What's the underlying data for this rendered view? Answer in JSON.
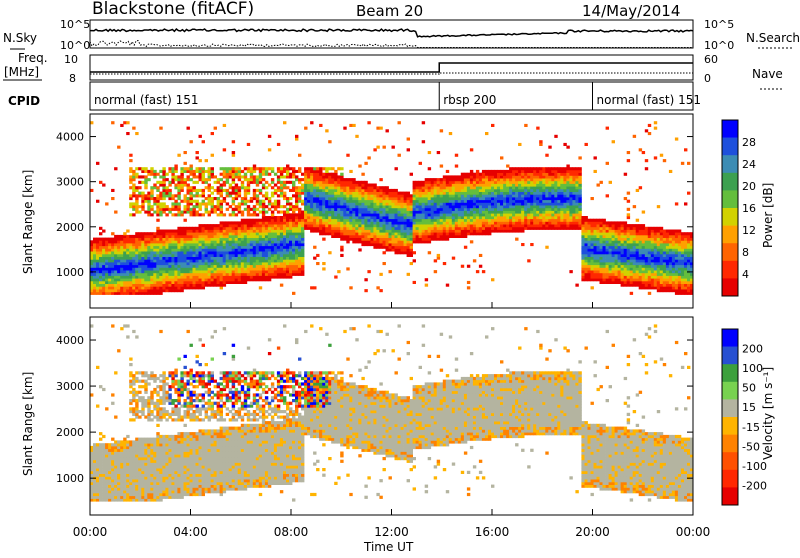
{
  "header": {
    "title": "Blackstone (fitACF)",
    "beam": "Beam 20",
    "date": "14/May/2014"
  },
  "left_labels": {
    "nsky": "N.Sky",
    "freq": "Freq.",
    "freq_unit": "[MHz]",
    "cpid": "CPID"
  },
  "right_labels": {
    "nsearch": "N.Search",
    "nave": "Nave"
  },
  "nsky_ticks": [
    "10^5",
    "10^0"
  ],
  "nsearch_ticks": [
    "10^5",
    "10^0"
  ],
  "freq_ticks": [
    "10",
    "8"
  ],
  "nave_ticks": [
    "60",
    "0"
  ],
  "cpid_modes": [
    {
      "label": "normal (fast) 151",
      "start_h": 0,
      "end_h": 13.9
    },
    {
      "label": "rbsp 200",
      "start_h": 13.9,
      "end_h": 20
    },
    {
      "label": "normal (fast) 151",
      "start_h": 20,
      "end_h": 24
    }
  ],
  "colors": {
    "power": [
      "#0000ff",
      "#1e50dc",
      "#3c8cb4",
      "#3ca050",
      "#64be3c",
      "#d2d200",
      "#ffa000",
      "#ff6400",
      "#ff2800",
      "#e60000"
    ],
    "velocity": [
      "#0000ff",
      "#2850d2",
      "#3ca03c",
      "#78d250",
      "#b4b4a0",
      "#ffb400",
      "#ff8200",
      "#ff5000",
      "#ff2800",
      "#e60000"
    ]
  },
  "chart_data": [
    {
      "type": "heatmap",
      "name": "power",
      "ylabel": "Slant Range [km]",
      "ylim": [
        200,
        4500
      ],
      "yticks": [
        "1000",
        "2000",
        "3000",
        "4000"
      ],
      "colorbar_label": "Power [dB]",
      "colorbar_ticks": [
        "28",
        "24",
        "20",
        "16",
        "12",
        "8",
        "4"
      ],
      "colorbar_range": [
        0,
        30
      ]
    },
    {
      "type": "heatmap",
      "name": "velocity",
      "ylabel": "Slant Range [km]",
      "ylim": [
        200,
        4500
      ],
      "yticks": [
        "1000",
        "2000",
        "3000",
        "4000"
      ],
      "colorbar_label": "Velocity [m s⁻¹]",
      "colorbar_ticks": [
        "200",
        "100",
        "50",
        "15",
        "-15",
        "-50",
        "-100",
        "-200"
      ],
      "colorbar_range": [
        -250,
        250
      ]
    }
  ],
  "x_axis": {
    "xlabel": "Time UT",
    "xlim_hours": [
      0,
      24
    ],
    "ticks": [
      "00:00",
      "04:00",
      "08:00",
      "12:00",
      "16:00",
      "20:00",
      "00:00"
    ]
  }
}
